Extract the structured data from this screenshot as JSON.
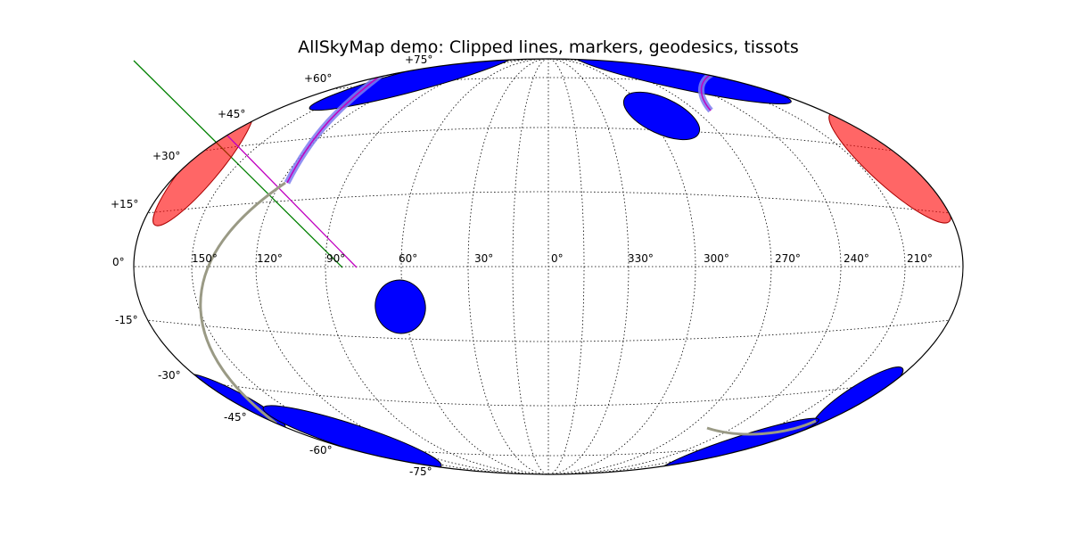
{
  "title": "AllSkyMap demo:  Clipped lines, markers, geodesics, tissots",
  "map": {
    "projection": "Hammer",
    "longitude_labels": [
      "150°",
      "120°",
      "90°",
      "60°",
      "30°",
      "0°",
      "330°",
      "300°",
      "270°",
      "240°",
      "210°"
    ],
    "latitude_labels": [
      "+75°",
      "+60°",
      "+45°",
      "+30°",
      "+15°",
      "0°",
      "-15°",
      "-30°",
      "-45°",
      "-60°",
      "-75°"
    ],
    "colors": {
      "tissot_blue": "#0000ff",
      "tissot_red": "#ff0000",
      "geodesic": "#9a9a85",
      "track": "#7d7df0",
      "track_core": "#c000c0",
      "line_green": "#008000",
      "line_magenta": "#c000c0",
      "grid": "#000000"
    }
  }
}
